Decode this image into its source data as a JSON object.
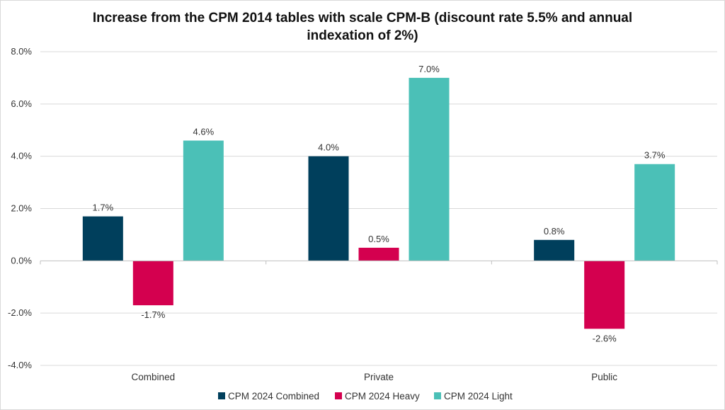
{
  "chart_data": {
    "type": "bar",
    "title_lines": [
      "Increase from the CPM 2014 tables with scale CPM-B (discount rate 5.5% and annual",
      "indexation of 2%)"
    ],
    "xlabel": "",
    "ylabel": "",
    "categories": [
      "Combined",
      "Private",
      "Public"
    ],
    "series": [
      {
        "name": "CPM 2024 Combined",
        "color": "#003f5c",
        "values": [
          1.7,
          4.0,
          0.8
        ],
        "labels": [
          "1.7%",
          "4.0%",
          "0.8%"
        ]
      },
      {
        "name": "CPM 2024 Heavy",
        "color": "#d4004f",
        "values": [
          -1.7,
          0.5,
          -2.6
        ],
        "labels": [
          "-1.7%",
          "0.5%",
          "-2.6%"
        ]
      },
      {
        "name": "CPM 2024 Light",
        "color": "#4bc0b7",
        "values": [
          4.6,
          7.0,
          3.7
        ],
        "labels": [
          "4.6%",
          "7.0%",
          "3.7%"
        ]
      }
    ],
    "ylim": [
      -4.0,
      8.0
    ],
    "yticks": [
      -4.0,
      -2.0,
      0.0,
      2.0,
      4.0,
      6.0,
      8.0
    ],
    "ytick_labels": [
      "-4.0%",
      "-2.0%",
      "0.0%",
      "2.0%",
      "4.0%",
      "6.0%",
      "8.0%"
    ],
    "grid": true,
    "legend_position": "bottom"
  }
}
